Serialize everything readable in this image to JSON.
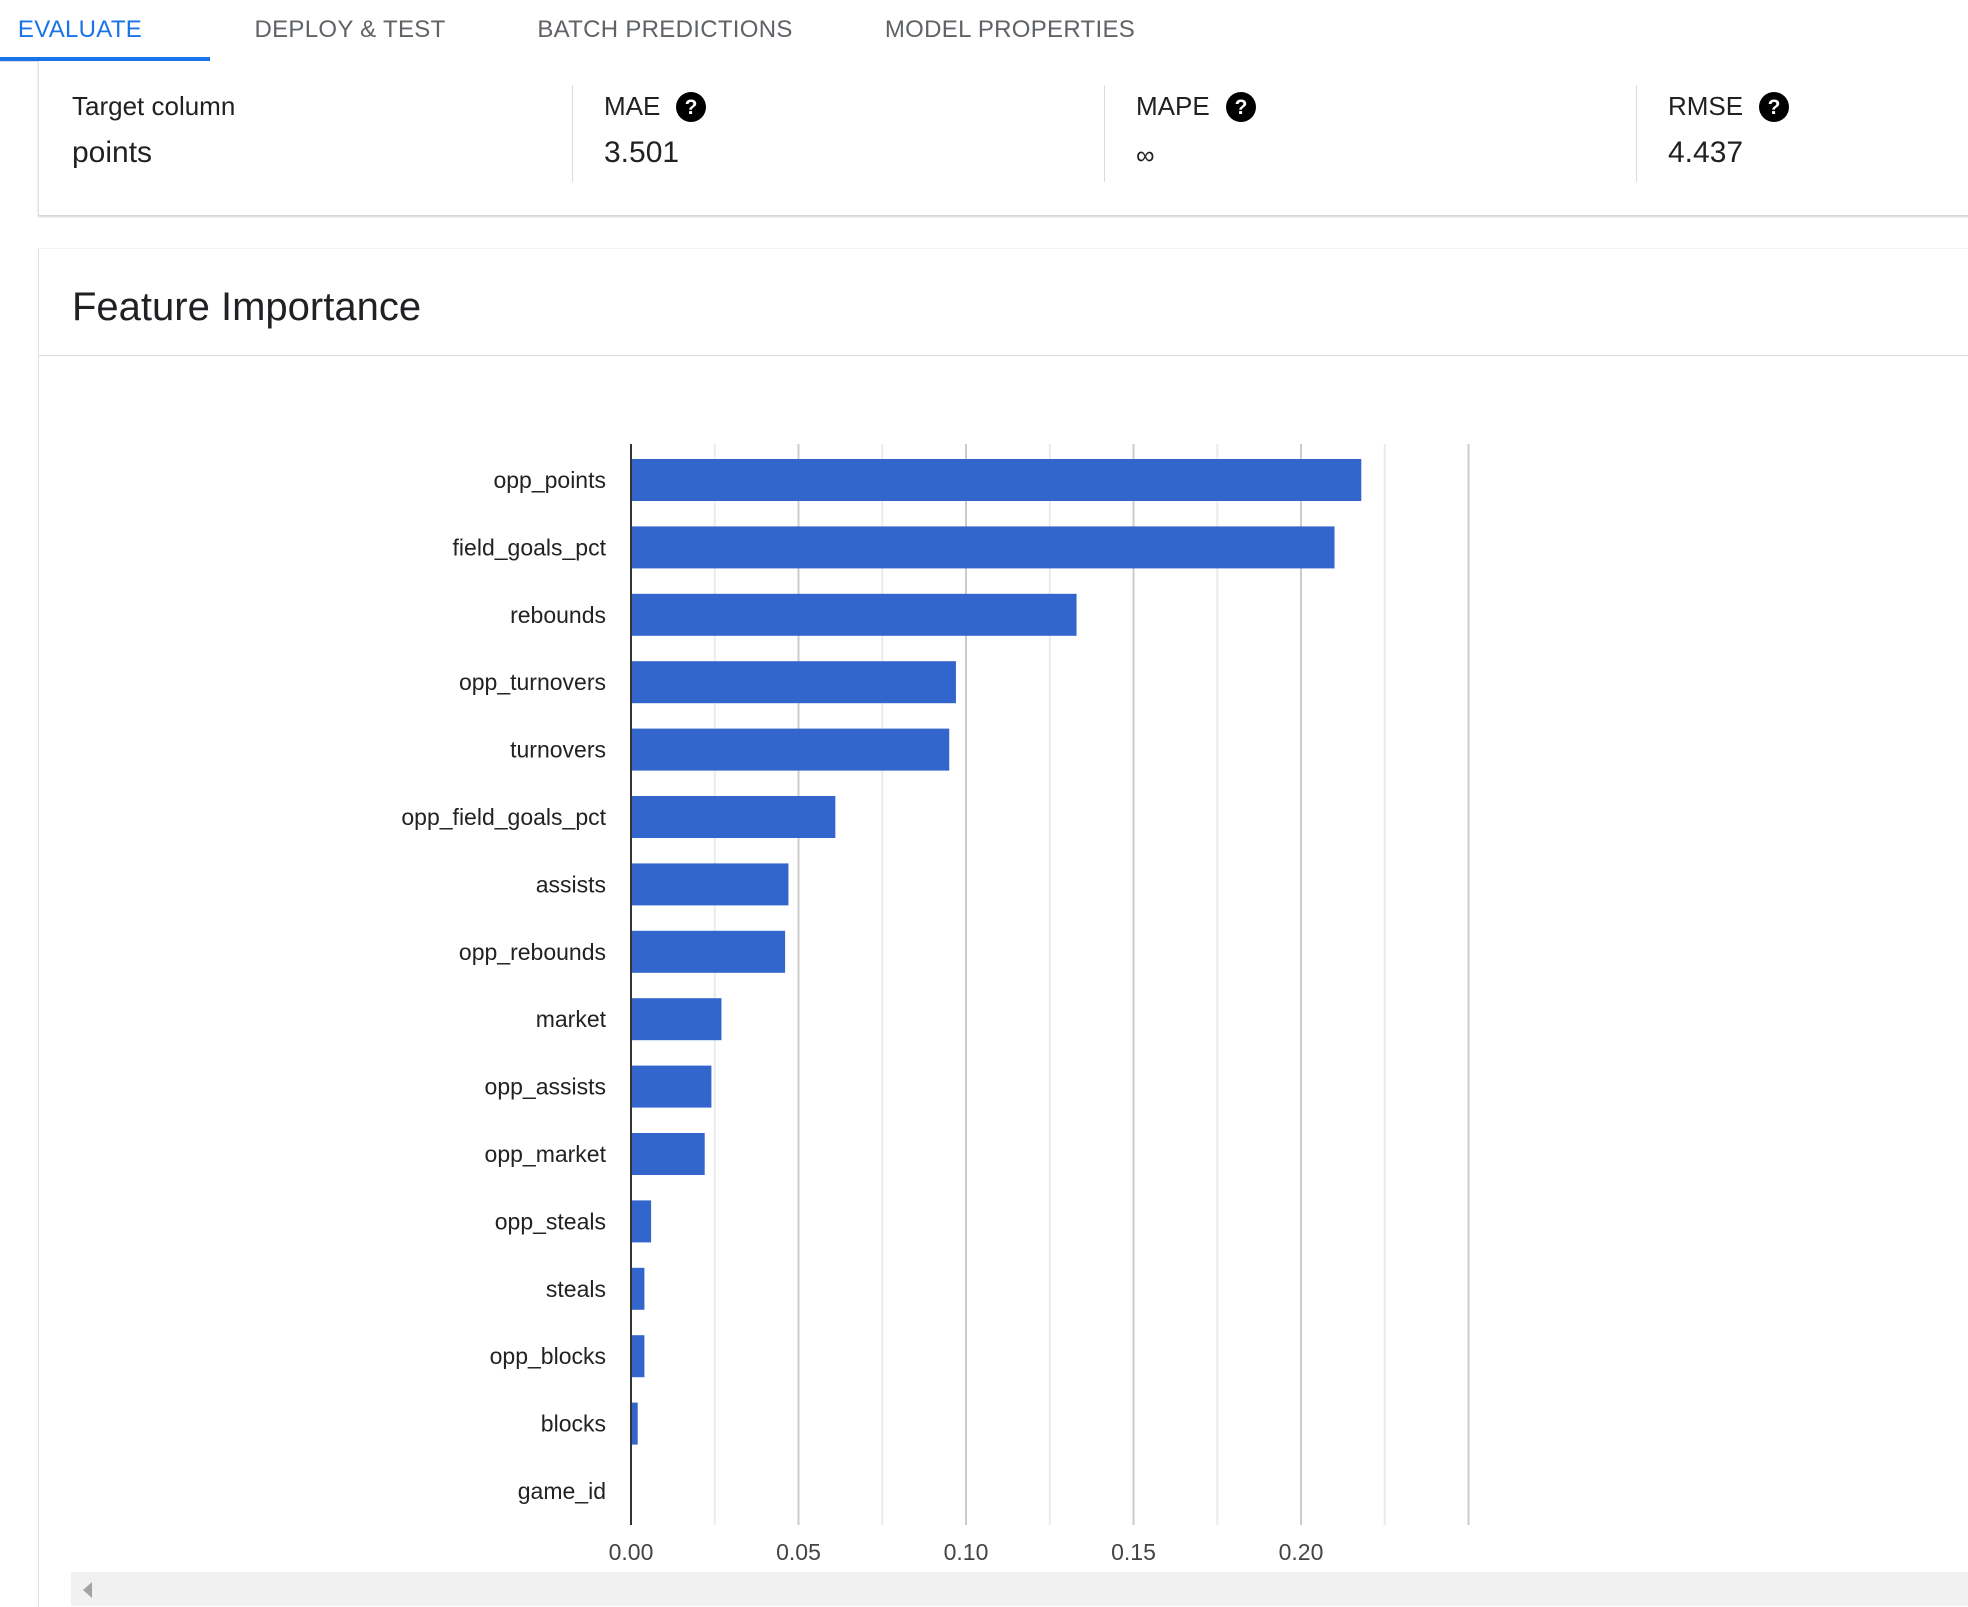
{
  "tabs": [
    {
      "label": "EVALUATE",
      "active": true
    },
    {
      "label": "DEPLOY & TEST",
      "active": false
    },
    {
      "label": "BATCH PREDICTIONS",
      "active": false
    },
    {
      "label": "MODEL PROPERTIES",
      "active": false
    }
  ],
  "metrics": {
    "target": {
      "label": "Target column",
      "value": "points"
    },
    "mae": {
      "label": "MAE",
      "value": "3.501"
    },
    "mape": {
      "label": "MAPE",
      "value": "∞"
    },
    "rmse": {
      "label": "RMSE",
      "value": "4.437"
    }
  },
  "feature_importance": {
    "title": "Feature Importance"
  },
  "colors": {
    "accent": "#1a73e8",
    "bar": "#3366cc"
  },
  "chart_data": {
    "type": "bar",
    "orientation": "horizontal",
    "title": "",
    "xlabel": "",
    "ylabel": "",
    "categories": [
      "opp_points",
      "field_goals_pct",
      "rebounds",
      "opp_turnovers",
      "turnovers",
      "opp_field_goals_pct",
      "assists",
      "opp_rebounds",
      "market",
      "opp_assists",
      "opp_market",
      "opp_steals",
      "steals",
      "opp_blocks",
      "blocks",
      "game_id"
    ],
    "values": [
      0.218,
      0.21,
      0.133,
      0.097,
      0.095,
      0.061,
      0.047,
      0.046,
      0.027,
      0.024,
      0.022,
      0.006,
      0.004,
      0.004,
      0.002,
      0.0
    ],
    "xlim": [
      0,
      0.25
    ],
    "xticks": [
      "0.00",
      "0.05",
      "0.10",
      "0.15",
      "0.20"
    ],
    "grid": true
  }
}
